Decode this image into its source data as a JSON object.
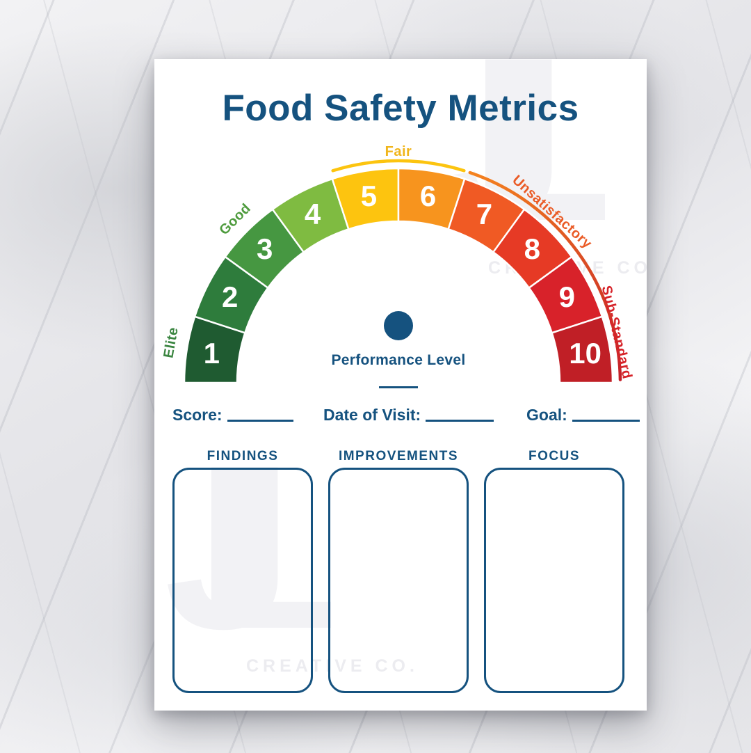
{
  "title": "Food Safety Metrics",
  "watermark": {
    "monogram": "JL",
    "text": "CREATIVE CO."
  },
  "fields": [
    {
      "label": "Score:"
    },
    {
      "label": "Date of Visit:"
    },
    {
      "label": "Goal:"
    }
  ],
  "sections": [
    {
      "label": "FINDINGS"
    },
    {
      "label": "IMPROVEMENTS"
    },
    {
      "label": "FOCUS"
    }
  ],
  "colors": {
    "navy": "#15527f",
    "paper": "#ffffff"
  },
  "chart_data": {
    "type": "gauge",
    "title": "Performance Level",
    "scale_min": 1,
    "scale_max": 10,
    "segments": [
      {
        "value": 1,
        "color": "#1f5b31"
      },
      {
        "value": 2,
        "color": "#2e7c3c"
      },
      {
        "value": 3,
        "color": "#469741"
      },
      {
        "value": 4,
        "color": "#7fbb41"
      },
      {
        "value": 5,
        "color": "#fdc40f"
      },
      {
        "value": 6,
        "color": "#f7941e"
      },
      {
        "value": 7,
        "color": "#f05a24"
      },
      {
        "value": 8,
        "color": "#e63a25"
      },
      {
        "value": 9,
        "color": "#d8222a"
      },
      {
        "value": 10,
        "color": "#c01f26"
      }
    ],
    "range_labels": [
      {
        "text": "Elite",
        "color": "#3a8540",
        "angle": 170,
        "radius": 332
      },
      {
        "text": "Good",
        "color": "#4e9b3d",
        "angle": 135,
        "radius": 332
      },
      {
        "text": "Fair",
        "color": "#f0b51b",
        "angle": 90,
        "radius": 332
      },
      {
        "text": "Unsatisfactory",
        "color": "#ea5b26",
        "angle": 48,
        "radius": 330
      },
      {
        "text": "Sub-Standard",
        "color": "#d62329",
        "angle": 13,
        "radius": 322
      }
    ],
    "outer_arcs": [
      {
        "from": 5,
        "to": 6,
        "colors": [
          "#fcc40f"
        ]
      },
      {
        "from": 7,
        "to": 10,
        "colors": [
          "#f5831f",
          "#c41f28"
        ]
      }
    ]
  }
}
